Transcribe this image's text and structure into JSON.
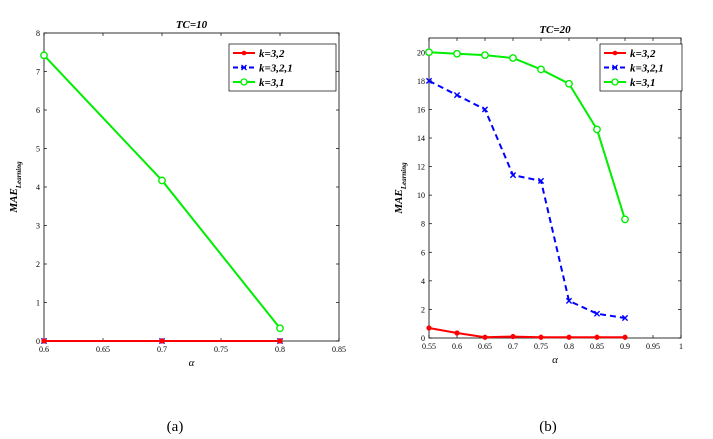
{
  "chart_data": [
    {
      "type": "line",
      "title": "TC=10",
      "xlabel": "α",
      "ylabel_main": "MAE",
      "ylabel_sub": "Learning",
      "xlim": [
        0.6,
        0.85
      ],
      "ylim": [
        0,
        8
      ],
      "xticks": [
        "0.6",
        "0.65",
        "0.7",
        "0.75",
        "0.8",
        "0.85"
      ],
      "yticks": [
        "0",
        "1",
        "2",
        "3",
        "4",
        "5",
        "6",
        "7",
        "8"
      ],
      "legend_position": "top-right",
      "grid": false,
      "series": [
        {
          "name": "k=3,2",
          "color": "#ff0000",
          "marker": "dot",
          "dash": false,
          "x": [
            0.6,
            0.7,
            0.8
          ],
          "y": [
            0,
            0,
            0
          ]
        },
        {
          "name": "k=3,2,1",
          "color": "#0000ff",
          "marker": "x",
          "dash": true,
          "x": [
            0.6,
            0.7,
            0.8
          ],
          "y": [
            0,
            0,
            0
          ]
        },
        {
          "name": "k=3,1",
          "color": "#00ee00",
          "marker": "circle",
          "dash": false,
          "x": [
            0.6,
            0.7,
            0.8
          ],
          "y": [
            7.42,
            4.17,
            0.33
          ]
        }
      ]
    },
    {
      "type": "line",
      "title": "TC=20",
      "xlabel": "α",
      "ylabel_main": "MAE",
      "ylabel_sub": "Learning",
      "xlim": [
        0.55,
        1.0
      ],
      "ylim": [
        0,
        21
      ],
      "xticks": [
        "0.55",
        "0.6",
        "0.65",
        "0.7",
        "0.75",
        "0.8",
        "0.85",
        "0.9",
        "0.95",
        "1"
      ],
      "yticks": [
        "0",
        "2",
        "4",
        "6",
        "8",
        "10",
        "12",
        "14",
        "16",
        "18",
        "20"
      ],
      "legend_position": "top-right",
      "grid": false,
      "series": [
        {
          "name": "k=3,2",
          "color": "#ff0000",
          "marker": "dot",
          "dash": false,
          "x": [
            0.55,
            0.6,
            0.65,
            0.7,
            0.75,
            0.8,
            0.85,
            0.9
          ],
          "y": [
            0.7,
            0.35,
            0.05,
            0.1,
            0.05,
            0.05,
            0.05,
            0.05
          ]
        },
        {
          "name": "k=3,2,1",
          "color": "#0000ff",
          "marker": "x",
          "dash": true,
          "x": [
            0.55,
            0.6,
            0.65,
            0.7,
            0.75,
            0.8,
            0.85,
            0.9
          ],
          "y": [
            18.0,
            17.0,
            16.0,
            11.4,
            11.0,
            2.6,
            1.7,
            1.4
          ]
        },
        {
          "name": "k=3,1",
          "color": "#00ee00",
          "marker": "circle",
          "dash": false,
          "x": [
            0.55,
            0.6,
            0.65,
            0.7,
            0.75,
            0.8,
            0.85,
            0.9
          ],
          "y": [
            20.0,
            19.9,
            19.8,
            19.6,
            18.8,
            17.8,
            14.6,
            8.3
          ]
        }
      ]
    }
  ],
  "captions": [
    "(a)",
    "(b)"
  ]
}
